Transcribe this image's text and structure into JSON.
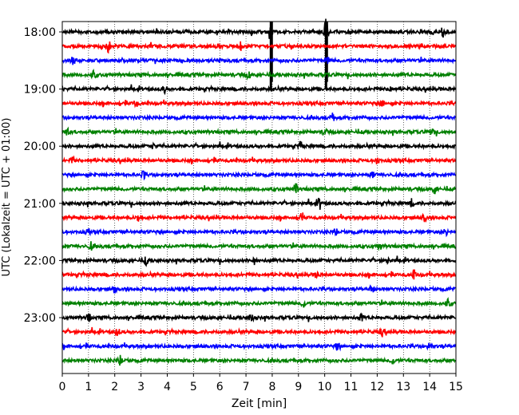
{
  "chart_data": {
    "type": "line",
    "title": "",
    "xlabel": "Zeit  [min]",
    "ylabel": "UTC (Lokalzeit = UTC + 01:00)",
    "xlim": [
      0,
      15
    ],
    "x_ticks": [
      "0",
      "1",
      "2",
      "3",
      "4",
      "5",
      "6",
      "7",
      "8",
      "9",
      "10",
      "11",
      "12",
      "13",
      "14",
      "15"
    ],
    "y_ticks": [
      "18:00",
      "19:00",
      "20:00",
      "21:00",
      "22:00",
      "23:00"
    ],
    "grid": "vertical dotted",
    "legend": "none",
    "trace_colors": [
      "#000000",
      "#ff0000",
      "#0000ff",
      "#008000"
    ],
    "row_interval_min": 15,
    "rows": [
      {
        "start": "18:00",
        "color": "#000000",
        "events": [
          {
            "x": 7.95,
            "amp": 1.0,
            "tall": true
          },
          {
            "x": 10.05,
            "amp": 1.0,
            "tall": true
          },
          {
            "x": 14.5,
            "amp": 0.4
          }
        ]
      },
      {
        "start": "18:15",
        "color": "#ff0000",
        "events": [
          {
            "x": 1.75,
            "amp": 0.55
          },
          {
            "x": 6.8,
            "amp": 0.3
          }
        ]
      },
      {
        "start": "18:30",
        "color": "#0000ff",
        "events": [
          {
            "x": 10.1,
            "amp": 0.3
          },
          {
            "x": 0.4,
            "amp": 0.25
          }
        ]
      },
      {
        "start": "18:45",
        "color": "#008000",
        "events": [
          {
            "x": 1.2,
            "amp": 0.3
          },
          {
            "x": 7.1,
            "amp": 0.3
          }
        ]
      },
      {
        "start": "19:00",
        "color": "#000000",
        "events": [
          {
            "x": 12.5,
            "amp": 0.45
          },
          {
            "x": 3.9,
            "amp": 0.3
          }
        ]
      },
      {
        "start": "19:15",
        "color": "#ff0000",
        "events": [
          {
            "x": 2.8,
            "amp": 0.35
          },
          {
            "x": 12.2,
            "amp": 0.25
          }
        ]
      },
      {
        "start": "19:30",
        "color": "#0000ff",
        "events": [
          {
            "x": 10.3,
            "amp": 0.3
          }
        ]
      },
      {
        "start": "19:45",
        "color": "#008000",
        "events": [
          {
            "x": 0.2,
            "amp": 0.3
          },
          {
            "x": 10.0,
            "amp": 0.3
          },
          {
            "x": 14.1,
            "amp": 0.3
          }
        ]
      },
      {
        "start": "20:00",
        "color": "#000000",
        "events": [
          {
            "x": 3.5,
            "amp": 0.25
          },
          {
            "x": 9.1,
            "amp": 0.35
          }
        ]
      },
      {
        "start": "20:15",
        "color": "#ff0000",
        "events": [
          {
            "x": 0.4,
            "amp": 0.25
          },
          {
            "x": 12.0,
            "amp": 0.3
          }
        ]
      },
      {
        "start": "20:30",
        "color": "#0000ff",
        "events": [
          {
            "x": 3.1,
            "amp": 0.3
          },
          {
            "x": 11.8,
            "amp": 0.3
          }
        ]
      },
      {
        "start": "20:45",
        "color": "#008000",
        "events": [
          {
            "x": 8.9,
            "amp": 0.4
          },
          {
            "x": 14.2,
            "amp": 0.4
          }
        ]
      },
      {
        "start": "21:00",
        "color": "#000000",
        "events": [
          {
            "x": 9.8,
            "amp": 0.45
          },
          {
            "x": 13.3,
            "amp": 0.3
          }
        ]
      },
      {
        "start": "21:15",
        "color": "#ff0000",
        "events": [
          {
            "x": 2.9,
            "amp": 0.35
          },
          {
            "x": 9.1,
            "amp": 0.3
          },
          {
            "x": 13.8,
            "amp": 0.3
          }
        ]
      },
      {
        "start": "21:30",
        "color": "#0000ff",
        "events": [
          {
            "x": 1.0,
            "amp": 0.25
          },
          {
            "x": 10.4,
            "amp": 0.3
          },
          {
            "x": 14.6,
            "amp": 0.3
          }
        ]
      },
      {
        "start": "21:45",
        "color": "#008000",
        "events": [
          {
            "x": 1.1,
            "amp": 0.3
          },
          {
            "x": 12.1,
            "amp": 0.25
          }
        ]
      },
      {
        "start": "22:00",
        "color": "#000000",
        "events": [
          {
            "x": 3.2,
            "amp": 0.3
          },
          {
            "x": 7.3,
            "amp": 0.3
          },
          {
            "x": 12.4,
            "amp": 0.3
          }
        ]
      },
      {
        "start": "22:15",
        "color": "#ff0000",
        "events": [
          {
            "x": 9.7,
            "amp": 0.3
          },
          {
            "x": 13.4,
            "amp": 0.35
          }
        ]
      },
      {
        "start": "22:30",
        "color": "#0000ff",
        "events": [
          {
            "x": 2.0,
            "amp": 0.25
          },
          {
            "x": 11.8,
            "amp": 0.3
          }
        ]
      },
      {
        "start": "22:45",
        "color": "#008000",
        "events": [
          {
            "x": 9.2,
            "amp": 0.3
          },
          {
            "x": 14.7,
            "amp": 0.3
          }
        ]
      },
      {
        "start": "23:00",
        "color": "#000000",
        "events": [
          {
            "x": 1.0,
            "amp": 0.3
          },
          {
            "x": 7.2,
            "amp": 0.35
          },
          {
            "x": 11.4,
            "amp": 0.3
          }
        ]
      },
      {
        "start": "23:15",
        "color": "#ff0000",
        "events": [
          {
            "x": 2.1,
            "amp": 0.3
          },
          {
            "x": 12.2,
            "amp": 0.3
          }
        ]
      },
      {
        "start": "23:30",
        "color": "#0000ff",
        "events": [
          {
            "x": 10.5,
            "amp": 0.35
          },
          {
            "x": 14.0,
            "amp": 0.35
          }
        ]
      },
      {
        "start": "23:45",
        "color": "#008000",
        "events": [
          {
            "x": 2.2,
            "amp": 0.35
          },
          {
            "x": 12.6,
            "amp": 0.3
          }
        ]
      }
    ]
  }
}
